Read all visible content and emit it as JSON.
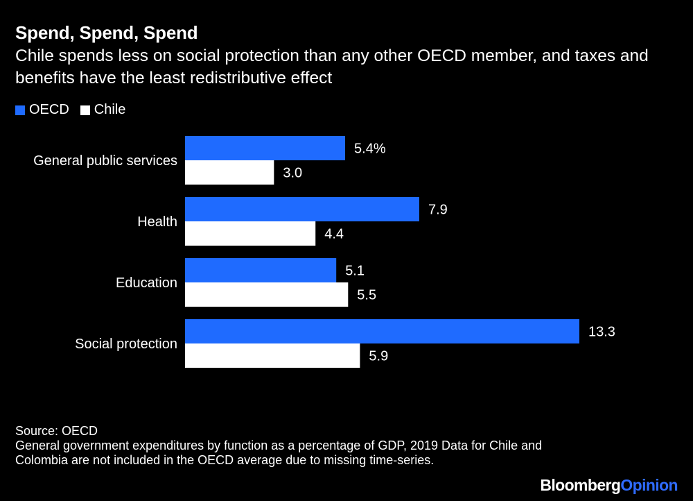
{
  "title": "Spend, Spend, Spend",
  "subtitle": "Chile spends less on social protection than any other OECD member, and taxes and benefits have the least redistributive effect",
  "legend": [
    {
      "name": "OECD",
      "color": "#1f6bff"
    },
    {
      "name": "Chile",
      "color": "#ffffff"
    }
  ],
  "chart_data": {
    "type": "bar",
    "orientation": "horizontal",
    "categories": [
      "General public services",
      "Health",
      "Education",
      "Social protection"
    ],
    "series": [
      {
        "name": "OECD",
        "color": "#1f6bff",
        "values": [
          5.4,
          7.9,
          5.1,
          13.3
        ],
        "labels": [
          "5.4%",
          "7.9",
          "5.1",
          "13.3"
        ]
      },
      {
        "name": "Chile",
        "color": "#ffffff",
        "values": [
          3.0,
          4.4,
          5.5,
          5.9
        ],
        "labels": [
          "3.0",
          "4.4",
          "5.5",
          "5.9"
        ]
      }
    ],
    "xlim": [
      0,
      13.3
    ],
    "grid": false,
    "legend_position": "top-left"
  },
  "source": "Source: OECD",
  "note": "General government expenditures by function as a percentage of GDP, 2019 Data for Chile and Colombia are not included in the OECD average due to missing time-series.",
  "branding": {
    "part1": "Bloomberg",
    "part2": "Opinion"
  }
}
